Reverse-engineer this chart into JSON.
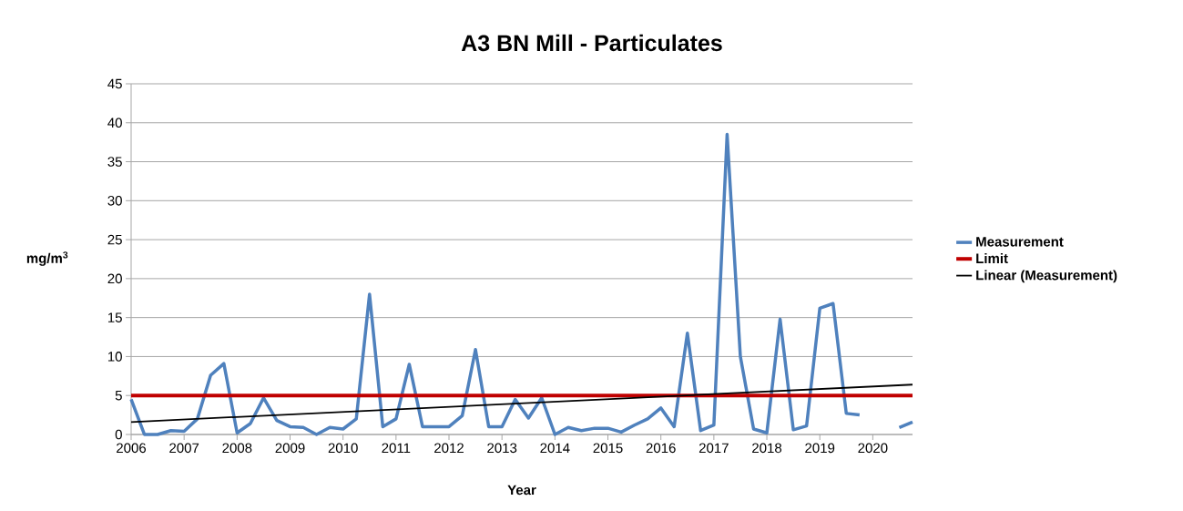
{
  "chart_data": {
    "type": "line",
    "title": "A3 BN Mill - Particulates",
    "xlabel": "Year",
    "ylabel": "mg/m$^{3}$",
    "xlim": [
      2006,
      2020.75
    ],
    "xticks": [
      2006,
      2007,
      2008,
      2009,
      2010,
      2011,
      2012,
      2013,
      2014,
      2015,
      2016,
      2017,
      2018,
      2019,
      2020
    ],
    "ylim": [
      0,
      45
    ],
    "yticks": [
      0,
      5,
      10,
      15,
      20,
      25,
      30,
      35,
      40,
      45
    ],
    "grid": "y",
    "legend": "right",
    "x": [
      2006,
      2006.25,
      2006.5,
      2006.75,
      2007,
      2007.25,
      2007.5,
      2007.75,
      2008,
      2008.25,
      2008.5,
      2008.75,
      2009,
      2009.25,
      2009.5,
      2009.75,
      2010,
      2010.25,
      2010.5,
      2010.75,
      2011,
      2011.25,
      2011.5,
      2011.75,
      2012,
      2012.25,
      2012.5,
      2012.75,
      2013,
      2013.25,
      2013.5,
      2013.75,
      2014,
      2014.25,
      2014.5,
      2014.75,
      2015,
      2015.25,
      2015.5,
      2015.75,
      2016,
      2016.25,
      2016.5,
      2016.75,
      2017,
      2017.25,
      2017.5,
      2017.75,
      2018,
      2018.25,
      2018.5,
      2018.75,
      2019,
      2019.25,
      2019.5,
      2019.75,
      2020,
      2020.25,
      2020.5,
      2020.75
    ],
    "series": [
      {
        "name": "Measurement",
        "color": "#4f81bd",
        "values": [
          4.5,
          0,
          0,
          0.5,
          0.4,
          2.0,
          7.6,
          9.1,
          0.2,
          1.4,
          4.7,
          1.8,
          1.0,
          0.9,
          0,
          0.9,
          0.7,
          2.0,
          18.0,
          1.0,
          2.0,
          9.0,
          1.0,
          1.0,
          1.0,
          2.4,
          10.9,
          1.0,
          1.0,
          4.5,
          2.1,
          4.7,
          0,
          0.9,
          0.5,
          0.8,
          0.8,
          0.3,
          1.2,
          2.0,
          3.4,
          1.0,
          13.0,
          0.5,
          1.2,
          38.5,
          10.0,
          0.7,
          0.2,
          14.8,
          0.6,
          1.1,
          16.2,
          16.8,
          2.7,
          2.5,
          null,
          null,
          0.9,
          1.6
        ]
      },
      {
        "name": "Limit",
        "color": "#c00000",
        "values": [
          5,
          5,
          5,
          5,
          5,
          5,
          5,
          5,
          5,
          5,
          5,
          5,
          5,
          5,
          5,
          5,
          5,
          5,
          5,
          5,
          5,
          5,
          5,
          5,
          5,
          5,
          5,
          5,
          5,
          5,
          5,
          5,
          5,
          5,
          5,
          5,
          5,
          5,
          5,
          5,
          5,
          5,
          5,
          5,
          5,
          5,
          5,
          5,
          5,
          5,
          5,
          5,
          5,
          5,
          5,
          5,
          5,
          5,
          5,
          5
        ]
      },
      {
        "name": "Linear (Measurement)",
        "color": "#000000",
        "x": [
          2006,
          2020.75
        ],
        "values": [
          1.6,
          6.4
        ]
      }
    ]
  }
}
